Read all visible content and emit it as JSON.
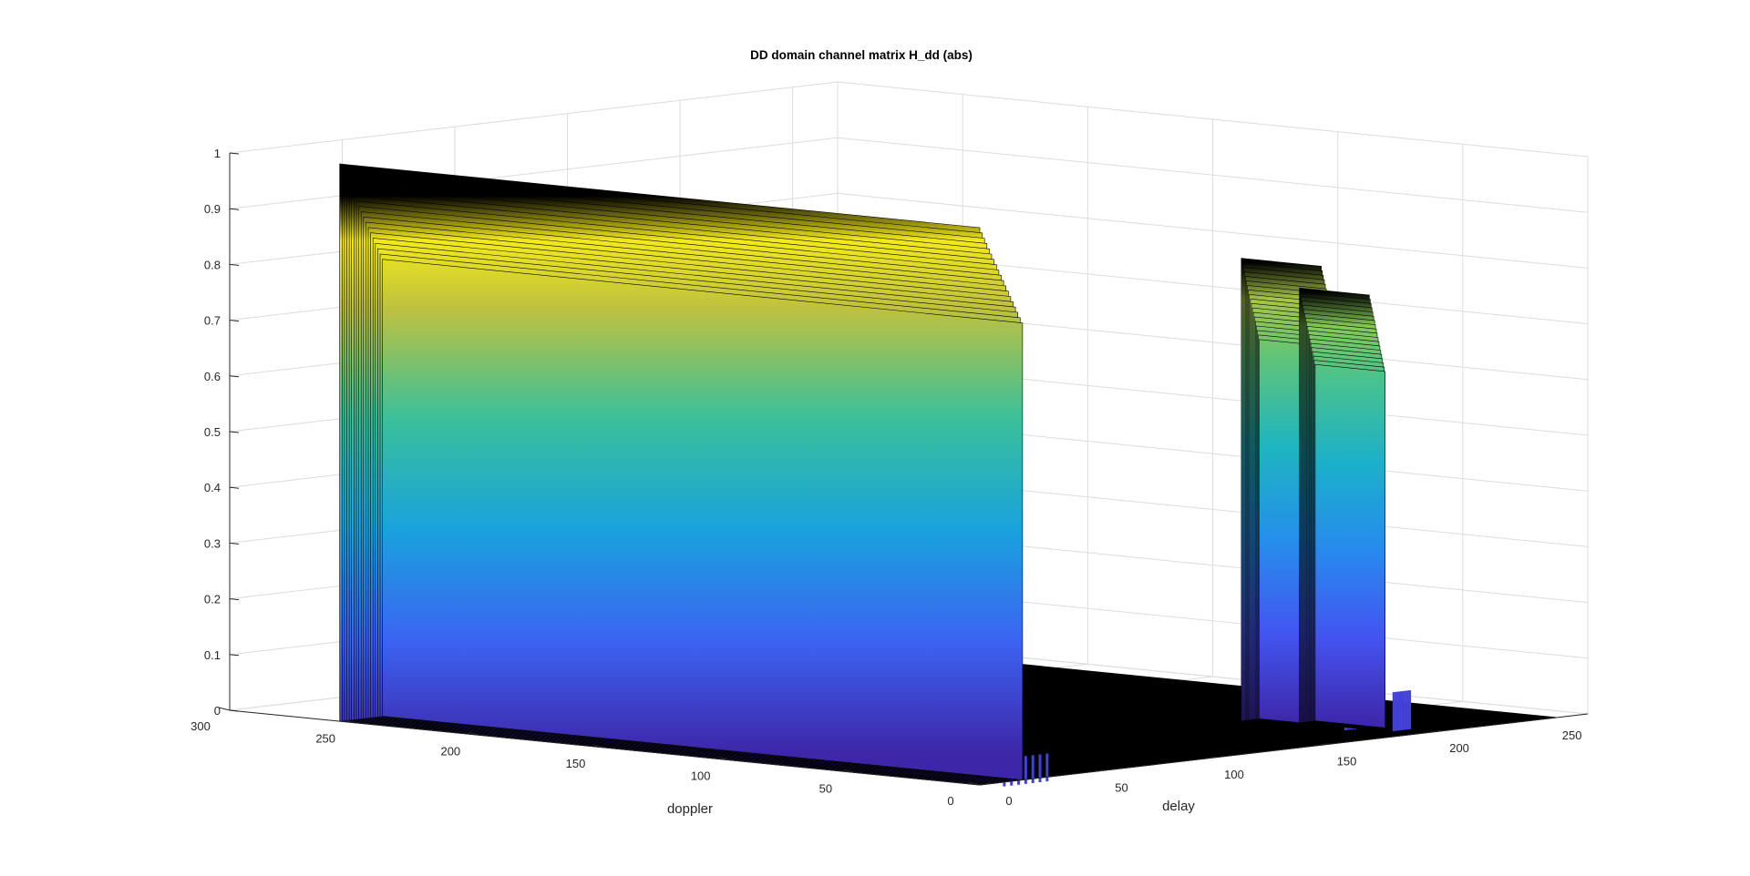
{
  "chart_data": {
    "type": "surface",
    "title": "DD domain channel matrix H_dd (abs)",
    "xlabel": "doppler",
    "ylabel": "delay",
    "zlabel": "",
    "doppler_range": [
      0,
      300
    ],
    "delay_range": [
      0,
      270
    ],
    "z_range": [
      0,
      1
    ],
    "doppler_ticks": [
      0,
      50,
      100,
      150,
      200,
      250,
      300
    ],
    "delay_ticks": [
      0,
      50,
      100,
      150,
      200,
      250
    ],
    "z_ticks": [
      0,
      0.1,
      0.2,
      0.3,
      0.4,
      0.5,
      0.6,
      0.7,
      0.8,
      0.9,
      1
    ],
    "grid": true,
    "colormap": "parula",
    "floor_color": "#000000",
    "ridges": [
      {
        "delay_start": 0,
        "delay_end": 19,
        "doppler_start": 0,
        "doppler_end": 256,
        "peak": 1.0,
        "secondary": 0.05
      },
      {
        "delay_start": 18,
        "delay_end": 28,
        "doppler_start": 210,
        "doppler_end": 256,
        "peak": 0.86,
        "secondary": 0.1
      },
      {
        "delay_start": 21,
        "delay_end": 29,
        "doppler_start": 180,
        "doppler_end": 256,
        "peak": 0.82,
        "secondary": 0.07
      },
      {
        "delay_start": 185,
        "delay_end": 193,
        "doppler_start": 30,
        "doppler_end": 62,
        "peak": 0.83,
        "secondary": 0.1
      },
      {
        "delay_start": 193,
        "delay_end": 200,
        "doppler_start": 18,
        "doppler_end": 46,
        "peak": 0.78,
        "secondary": 0.07
      }
    ]
  }
}
